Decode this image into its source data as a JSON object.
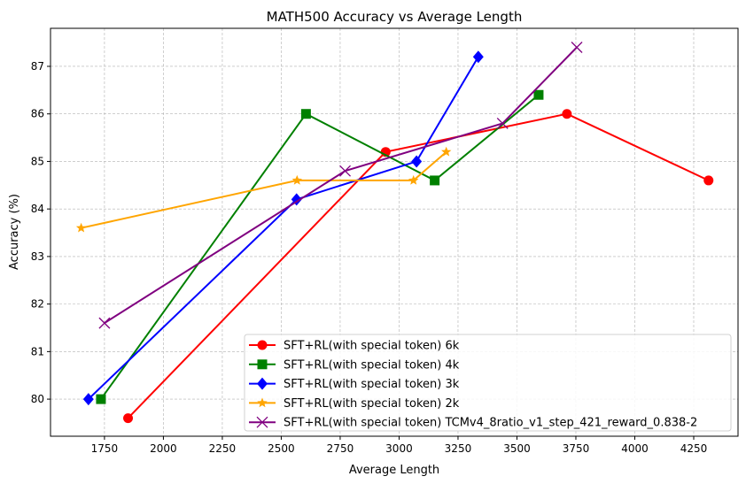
{
  "chart_data": {
    "type": "line",
    "title": "MATH500 Accuracy vs Average Length",
    "xlabel": "Average Length",
    "ylabel": "Accuracy (%)",
    "xlim": [
      1521,
      4438
    ],
    "ylim": [
      79.22,
      87.8
    ],
    "xticks": [
      1750,
      2000,
      2250,
      2500,
      2750,
      3000,
      3250,
      3500,
      3750,
      4000,
      4250
    ],
    "yticks": [
      80,
      81,
      82,
      83,
      84,
      85,
      86,
      87
    ],
    "grid": true,
    "legend_position": "lower-right",
    "series": [
      {
        "name": "SFT+RL(with special token) 6k",
        "color": "#ff0000",
        "marker": "circle",
        "x": [
          1850,
          2943,
          3712,
          4313
        ],
        "y": [
          79.6,
          85.2,
          86.0,
          84.6
        ]
      },
      {
        "name": "SFT+RL(with special token) 4k",
        "color": "#008000",
        "marker": "square",
        "x": [
          1735,
          2605,
          3151,
          3592
        ],
        "y": [
          80.0,
          86.0,
          84.6,
          86.4
        ]
      },
      {
        "name": "SFT+RL(with special token) 3k",
        "color": "#0000ff",
        "marker": "diamond",
        "x": [
          1682,
          2565,
          3074,
          3336
        ],
        "y": [
          80.0,
          84.2,
          85.0,
          87.2
        ]
      },
      {
        "name": "SFT+RL(with special token) 2k",
        "color": "#ffa500",
        "marker": "star",
        "x": [
          1651,
          2567,
          3061,
          3200
        ],
        "y": [
          83.6,
          84.6,
          84.6,
          85.2
        ]
      },
      {
        "name": "SFT+RL(with special token) TCMv4_8ratio_v1_step_421_reward_0.838-2",
        "color": "#800080",
        "marker": "x",
        "x": [
          1750,
          2771,
          3439,
          3754
        ],
        "y": [
          81.6,
          84.8,
          85.8,
          87.4
        ]
      }
    ]
  }
}
